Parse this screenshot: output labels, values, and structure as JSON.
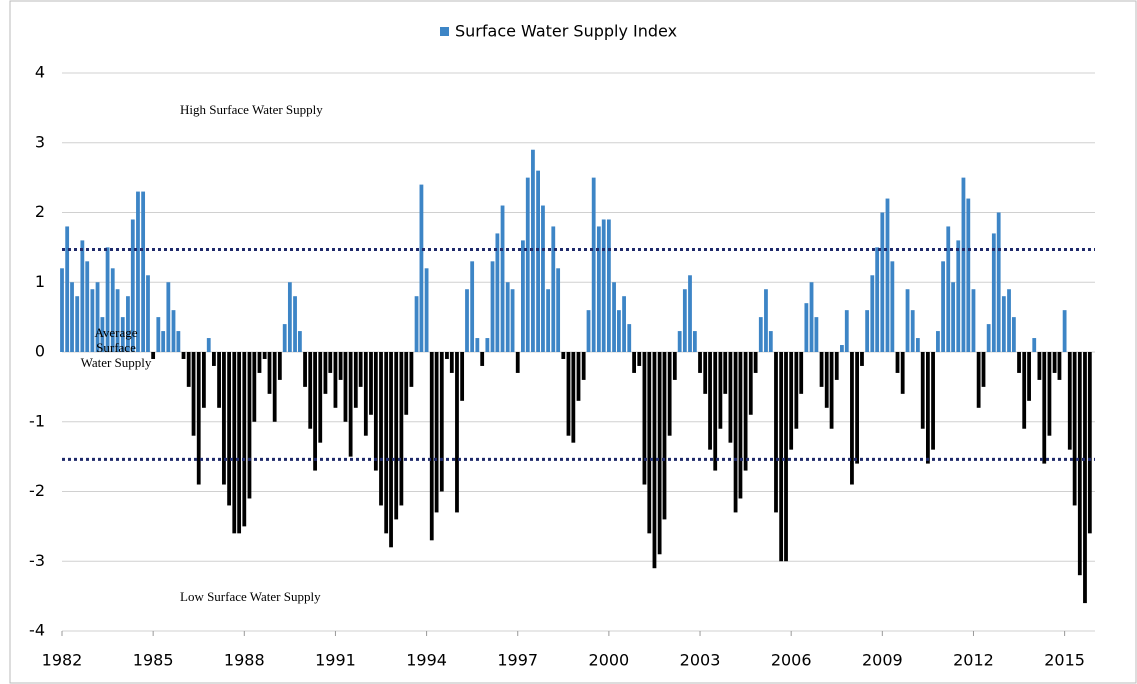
{
  "chart_data": {
    "type": "bar",
    "legend": "top",
    "grid": true,
    "annotations": [
      "High Surface Water Supply",
      "Average Surface Water Supply",
      "Low Surface Water Supply"
    ],
    "reference_lines": [
      {
        "value": 1.47,
        "color": "#1f2a6b"
      },
      {
        "value": -1.54,
        "color": "#1f2a6b"
      }
    ],
    "xlim": [
      1982,
      2016
    ],
    "xticks": [
      1982,
      1985,
      1988,
      1991,
      1994,
      1997,
      2000,
      2003,
      2006,
      2009,
      2012,
      2015
    ],
    "ylim": [
      -4,
      4
    ],
    "yticks": [
      -4,
      -3,
      -2,
      -1,
      0,
      1,
      2,
      3,
      4
    ],
    "x": [
      1982,
      1982.17,
      1982.33,
      1982.5,
      1982.67,
      1982.83,
      1983,
      1983.17,
      1983.33,
      1983.5,
      1983.67,
      1983.83,
      1984,
      1984.17,
      1984.33,
      1984.5,
      1984.67,
      1984.83,
      1985,
      1985.17,
      1985.33,
      1985.5,
      1985.67,
      1985.83,
      1986,
      1986.17,
      1986.33,
      1986.5,
      1986.67,
      1986.83,
      1987,
      1987.17,
      1987.33,
      1987.5,
      1987.67,
      1987.83,
      1988,
      1988.17,
      1988.33,
      1988.5,
      1988.67,
      1988.83,
      1989,
      1989.17,
      1989.33,
      1989.5,
      1989.67,
      1989.83,
      1990,
      1990.17,
      1990.33,
      1990.5,
      1990.67,
      1990.83,
      1991,
      1991.17,
      1991.33,
      1991.5,
      1991.67,
      1991.83,
      1992,
      1992.17,
      1992.33,
      1992.5,
      1992.67,
      1992.83,
      1993,
      1993.17,
      1993.33,
      1993.5,
      1993.67,
      1993.83,
      1994,
      1994.17,
      1994.33,
      1994.5,
      1994.67,
      1994.83,
      1995,
      1995.17,
      1995.33,
      1995.5,
      1995.67,
      1995.83,
      1996,
      1996.17,
      1996.33,
      1996.5,
      1996.67,
      1996.83,
      1997,
      1997.17,
      1997.33,
      1997.5,
      1997.67,
      1997.83,
      1998,
      1998.17,
      1998.33,
      1998.5,
      1998.67,
      1998.83,
      1999,
      1999.17,
      1999.33,
      1999.5,
      1999.67,
      1999.83,
      2000,
      2000.17,
      2000.33,
      2000.5,
      2000.67,
      2000.83,
      2001,
      2001.17,
      2001.33,
      2001.5,
      2001.67,
      2001.83,
      2002,
      2002.17,
      2002.33,
      2002.5,
      2002.67,
      2002.83,
      2003,
      2003.17,
      2003.33,
      2003.5,
      2003.67,
      2003.83,
      2004,
      2004.17,
      2004.33,
      2004.5,
      2004.67,
      2004.83,
      2005,
      2005.17,
      2005.33,
      2005.5,
      2005.67,
      2005.83,
      2006,
      2006.17,
      2006.33,
      2006.5,
      2006.67,
      2006.83,
      2007,
      2007.17,
      2007.33,
      2007.5,
      2007.67,
      2007.83,
      2008,
      2008.17,
      2008.33,
      2008.5,
      2008.67,
      2008.83,
      2009,
      2009.17,
      2009.33,
      2009.5,
      2009.67,
      2009.83,
      2010,
      2010.17,
      2010.33,
      2010.5,
      2010.67,
      2010.83,
      2011,
      2011.17,
      2011.33,
      2011.5,
      2011.67,
      2011.83,
      2012,
      2012.17,
      2012.33,
      2012.5,
      2012.67,
      2012.83,
      2013,
      2013.17,
      2013.33,
      2013.5,
      2013.67,
      2013.83,
      2014,
      2014.17,
      2014.33,
      2014.5,
      2014.67,
      2014.83,
      2015,
      2015.17,
      2015.33,
      2015.5,
      2015.67,
      2015.83
    ],
    "series": [
      {
        "name": "Surface Water Supply Index",
        "color": "#3d85c6",
        "negative_color": "#000000",
        "values": [
          1.2,
          1.8,
          1.0,
          0.8,
          1.6,
          1.3,
          0.9,
          1.0,
          0.5,
          1.5,
          1.2,
          0.9,
          0.5,
          0.8,
          1.9,
          2.3,
          2.3,
          1.1,
          -0.1,
          0.5,
          0.3,
          1.0,
          0.6,
          0.3,
          -0.1,
          -0.5,
          -1.2,
          -1.9,
          -0.8,
          0.2,
          -0.2,
          -0.8,
          -1.9,
          -2.2,
          -2.6,
          -2.6,
          -2.5,
          -2.1,
          -1.0,
          -0.3,
          -0.1,
          -0.6,
          -1.0,
          -0.4,
          0.4,
          1.0,
          0.8,
          0.3,
          -0.5,
          -1.1,
          -1.7,
          -1.3,
          -0.6,
          -0.3,
          -0.8,
          -0.4,
          -1.0,
          -1.5,
          -0.8,
          -0.5,
          -1.2,
          -0.9,
          -1.7,
          -2.2,
          -2.6,
          -2.8,
          -2.4,
          -2.2,
          -0.9,
          -0.5,
          0.8,
          2.4,
          1.2,
          -2.7,
          -2.3,
          -2.0,
          -0.1,
          -0.3,
          -2.3,
          -0.7,
          0.9,
          1.3,
          0.2,
          -0.2,
          0.2,
          1.3,
          1.7,
          2.1,
          1.0,
          0.9,
          -0.3,
          1.6,
          2.5,
          2.9,
          2.6,
          2.1,
          0.9,
          1.8,
          1.2,
          -0.1,
          -1.2,
          -1.3,
          -0.7,
          -0.4,
          0.6,
          2.5,
          1.8,
          1.9,
          1.9,
          1.0,
          0.6,
          0.8,
          0.4,
          -0.3,
          -0.2,
          -1.9,
          -2.6,
          -3.1,
          -2.9,
          -2.4,
          -1.2,
          -0.4,
          0.3,
          0.9,
          1.1,
          0.3,
          -0.3,
          -0.6,
          -1.4,
          -1.7,
          -1.1,
          -0.6,
          -1.3,
          -2.3,
          -2.1,
          -1.7,
          -0.9,
          -0.3,
          0.5,
          0.9,
          0.3,
          -2.3,
          -3.0,
          -3.0,
          -1.4,
          -1.1,
          -0.6,
          0.7,
          1.0,
          0.5,
          -0.5,
          -0.8,
          -1.1,
          -0.4,
          0.1,
          0.6,
          -1.9,
          -1.6,
          -0.2,
          0.6,
          1.1,
          1.5,
          2.0,
          2.2,
          1.3,
          -0.3,
          -0.6,
          0.9,
          0.6,
          0.2,
          -1.1,
          -1.6,
          -1.4,
          0.3,
          1.3,
          1.8,
          1.0,
          1.6,
          2.5,
          2.2,
          0.9,
          -0.8,
          -0.5,
          0.4,
          1.7,
          2.0,
          0.8,
          0.9,
          0.5,
          -0.3,
          -1.1,
          -0.7,
          0.2,
          -0.4,
          -1.6,
          -1.2,
          -0.3,
          -0.4,
          0.6,
          -1.4,
          -2.2,
          -3.2,
          -3.6,
          -2.6
        ]
      }
    ]
  }
}
